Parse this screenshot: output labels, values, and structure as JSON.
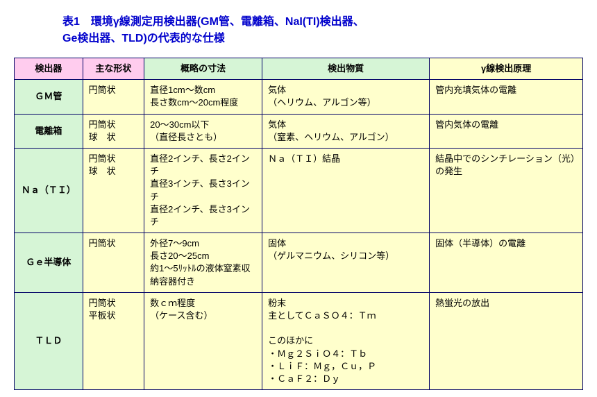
{
  "title_line1": "表1　環境γ線測定用検出器(GM管、電離箱、NaI(TI)検出器、",
  "title_line2": "Ge検出器、TLD)の代表的な仕様",
  "headers": {
    "detector": "検出器",
    "shape": "主な形状",
    "dimensions": "概略の寸法",
    "material": "検出物質",
    "principle": "γ線検出原理"
  },
  "rows": [
    {
      "detector": "ＧＭ管",
      "shape": "円筒状",
      "dimensions": "直径1cm～数cm\n長さ数cm～20cm程度",
      "material": "気体\n（ヘリウム、アルゴン等）",
      "principle": "管内充填気体の電離"
    },
    {
      "detector": "電離箱",
      "shape": "円筒状\n球　状",
      "dimensions": "20～30cm以下\n（直径長さとも）",
      "material": "気体\n（窒素、ヘリウム、アルゴン）",
      "principle": "管内気体の電離"
    },
    {
      "detector": "Ｎａ（ＴＩ）",
      "shape": "円筒状\n球　状",
      "dimensions": "直径2インチ、長さ2インチ\n直径3インチ、長さ3インチ\n直径2インチ、長さ3インチ",
      "material": "Ｎａ（ＴＩ）結晶",
      "principle": "結晶中でのシンチレーション（光）の発生"
    },
    {
      "detector": "Ｇｅ半導体",
      "shape": "円筒状",
      "dimensions": "外径7～9cm\n長さ20～25cm\n約1～5ﾘｯﾄﾙの液体窒素収納容器付き",
      "material": "固体\n（ゲルマニウム、シリコン等）",
      "principle": "固体（半導体）の電離"
    },
    {
      "detector": "ＴＬＤ",
      "shape": "円筒状\n平板状",
      "dimensions": "数ｃｍ程度\n（ケース含む）",
      "material": "粉末\n主としてＣａＳＯ４：Ｔｍ\n\nこのほかに\n・Ｍｇ２ＳｉＯ４：Ｔｂ\n・ＬｉＦ：Ｍｇ，Ｃｕ，Ｐ\n・ＣａＦ２：Ｄｙ",
      "principle": "熱蛍光の放出"
    }
  ],
  "style": {
    "title_color": "#0000cc",
    "border_color": "#000066",
    "pink_bg": "#ffccee",
    "green_bg": "#d6f5d6",
    "yellow_bg": "#ffffcc",
    "title_fontsize": 16,
    "body_fontsize": 13
  }
}
